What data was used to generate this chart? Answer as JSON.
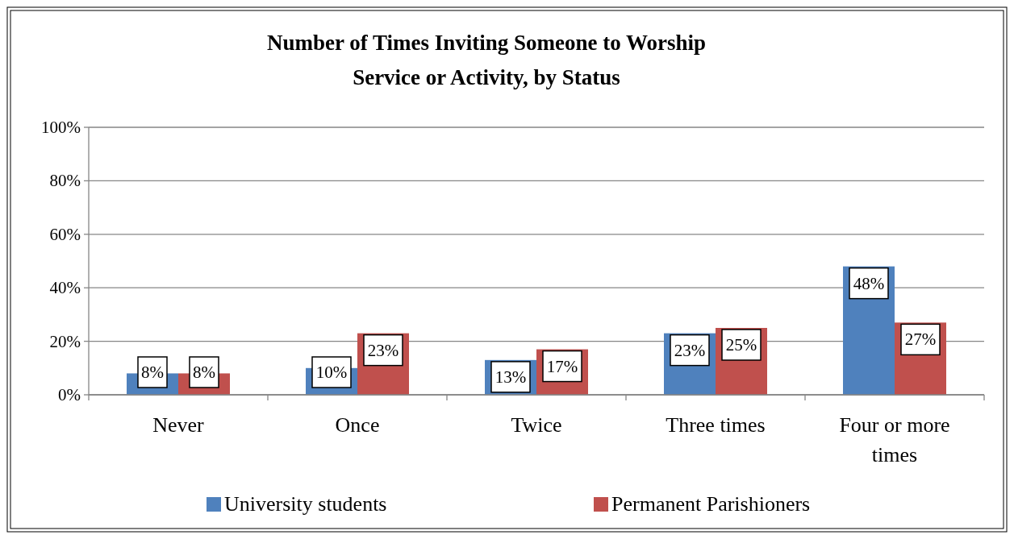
{
  "chart_data": {
    "type": "bar",
    "title": "Number of Times Inviting Someone to Worship Service or Activity, by Status",
    "categories": [
      "Never",
      "Once",
      "Twice",
      "Three times",
      "Four or more times"
    ],
    "series": [
      {
        "name": "University students",
        "color": "#4f81bd",
        "values": [
          8,
          10,
          13,
          23,
          48
        ],
        "value_labels": [
          "8%",
          "10%",
          "13%",
          "23%",
          "48%"
        ]
      },
      {
        "name": "Permanent Parishioners",
        "color": "#c0504d",
        "values": [
          8,
          23,
          17,
          25,
          27
        ],
        "value_labels": [
          "8%",
          "23%",
          "17%",
          "25%",
          "27%"
        ]
      }
    ],
    "ylim": [
      0,
      100
    ],
    "yticks": [
      {
        "value": 0,
        "label": "0%"
      },
      {
        "value": 20,
        "label": "20%"
      },
      {
        "value": 40,
        "label": "40%"
      },
      {
        "value": 60,
        "label": "60%"
      },
      {
        "value": 80,
        "label": "80%"
      },
      {
        "value": 100,
        "label": "100%"
      }
    ],
    "grid": "y",
    "legend": "bottom"
  }
}
